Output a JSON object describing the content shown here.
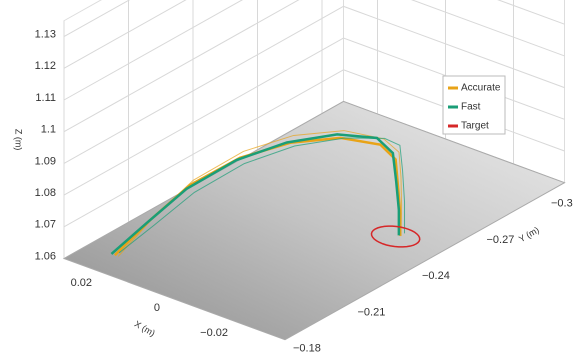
{
  "chart_data": {
    "type": "line3d",
    "xlabel": "X (m)",
    "ylabel": "Y (m)",
    "zlabel": "Z (m)",
    "xlim": [
      -0.035,
      0.03
    ],
    "ylim": [
      -0.31,
      -0.18
    ],
    "zlim": [
      1.06,
      1.135
    ],
    "xticks": [
      {
        "value": -0.02,
        "label": "−0.02"
      },
      0,
      0.02
    ],
    "yticks": [
      {
        "value": -0.3,
        "label": "−0.3"
      },
      {
        "value": -0.27,
        "label": "−0.27"
      },
      {
        "value": -0.24,
        "label": "−0.24"
      },
      {
        "value": -0.21,
        "label": "−0.21"
      },
      {
        "value": -0.18,
        "label": "−0.18"
      }
    ],
    "zticks": [
      1.06,
      1.07,
      1.08,
      1.09,
      1.1,
      1.11,
      1.12,
      1.13
    ],
    "grid": true,
    "legend": "right",
    "series": [
      {
        "name": "Accurate",
        "color": "#e8a317",
        "trajectories": [
          {
            "x": [
              0.022,
              0.0165,
              0.0102,
              0.0024,
              -0.0055,
              -0.0134,
              -0.0196,
              -0.022,
              -0.0224,
              -0.0226,
              -0.0226
            ],
            "y": [
              -0.191,
              -0.1986,
              -0.2073,
              -0.2182,
              -0.2291,
              -0.24,
              -0.2487,
              -0.252,
              -0.2526,
              -0.2532,
              -0.2532
            ],
            "z": [
              1.06,
              1.0703,
              1.0806,
              1.0881,
              1.0918,
              1.0923,
              1.0893,
              1.0843,
              1.0748,
              1.0669,
              1.06
            ]
          },
          {
            "x": [
              0.021,
              0.0155,
              0.0092,
              0.0014,
              -0.0065,
              -0.0144,
              -0.0206,
              -0.023,
              -0.0232,
              -0.023,
              -0.0228
            ],
            "y": [
              -0.191,
              -0.1986,
              -0.2073,
              -0.2182,
              -0.2291,
              -0.24,
              -0.2487,
              -0.252,
              -0.2526,
              -0.2532,
              -0.2532
            ],
            "z": [
              1.06,
              1.0715,
              1.0825,
              1.0905,
              1.0945,
              1.095,
              1.0915,
              1.087,
              1.079,
              1.07,
              1.06
            ]
          }
        ]
      },
      {
        "name": "Fast",
        "color": "#1a9e77",
        "trajectories": [
          {
            "x": [
              0.023,
              0.0175,
              0.0112,
              0.0034,
              -0.0045,
              -0.0124,
              -0.0186,
              -0.0212,
              -0.0218,
              -0.0222,
              -0.0222
            ],
            "y": [
              -0.191,
              -0.1986,
              -0.2073,
              -0.2182,
              -0.2291,
              -0.24,
              -0.2487,
              -0.252,
              -0.2526,
              -0.2532,
              -0.2532
            ],
            "z": [
              1.06,
              1.069,
              1.079,
              1.087,
              1.0915,
              1.093,
              1.091,
              1.086,
              1.077,
              1.068,
              1.06
            ]
          },
          {
            "x": [
              0.022,
              0.0165,
              0.0102,
              0.0024,
              -0.0055,
              -0.0134,
              -0.0196,
              -0.022,
              -0.0224,
              -0.0226,
              -0.0226
            ],
            "y": [
              -0.193,
              -0.2006,
              -0.2093,
              -0.2202,
              -0.2311,
              -0.242,
              -0.2507,
              -0.254,
              -0.2546,
              -0.2552,
              -0.2552
            ],
            "z": [
              1.06,
              1.068,
              1.0775,
              1.0855,
              1.09,
              1.0915,
              1.0905,
              1.088,
              1.08,
              1.07,
              1.06
            ]
          }
        ]
      },
      {
        "name": "Target",
        "color": "#d62728",
        "x": -0.022,
        "y": -0.252,
        "radius": 0.006
      }
    ]
  }
}
